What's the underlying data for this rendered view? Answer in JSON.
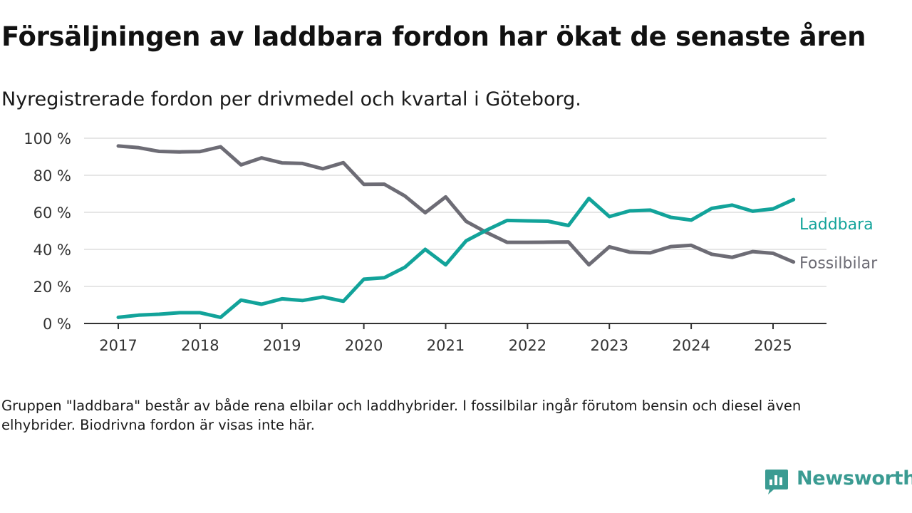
{
  "header": {
    "title": "Försäljningen av laddbara fordon har ökat de senaste åren",
    "subtitle": "Nyregistrerade fordon per drivmedel och kvartal i Göteborg."
  },
  "footer": {
    "note": "Gruppen \"laddbara\" består av både rena elbilar och laddhybrider. I fossilbilar ingår förutom bensin och diesel även elhybrider. Biodrivna fordon är visas inte här.",
    "brand": "Newsworthy"
  },
  "colors": {
    "laddbara": "#12a39a",
    "fossilbilar": "#6d6c75",
    "grid": "#dddddd",
    "axis": "#333333",
    "brand": "#3a9b92"
  },
  "icons": {
    "brand_logo": "chart-speech-bubble-icon"
  },
  "chart_data": {
    "type": "line",
    "title": "",
    "xlabel": "",
    "ylabel": "",
    "ylim": [
      0,
      100
    ],
    "yticks": [
      0,
      20,
      40,
      60,
      80,
      100
    ],
    "ytick_labels": [
      "0 %",
      "20 %",
      "40 %",
      "60 %",
      "80 %",
      "100 %"
    ],
    "xlim": [
      2017,
      2025.5
    ],
    "xticks": [
      2017,
      2018,
      2019,
      2020,
      2021,
      2022,
      2023,
      2024,
      2025
    ],
    "xtick_labels": [
      "2017",
      "2018",
      "2019",
      "2020",
      "2021",
      "2022",
      "2023",
      "2024",
      "2025"
    ],
    "grid": true,
    "legend": "direct labels at right end of lines",
    "x": [
      2017,
      2017.25,
      2017.5,
      2017.75,
      2018,
      2018.25,
      2018.5,
      2018.75,
      2019,
      2019.25,
      2019.5,
      2019.75,
      2020,
      2020.25,
      2020.5,
      2020.75,
      2021,
      2021.25,
      2021.5,
      2021.75,
      2022,
      2022.25,
      2022.5,
      2022.75,
      2023,
      2023.25,
      2023.5,
      2023.75,
      2024,
      2024.25,
      2024.5,
      2024.75,
      2025,
      2025.25
    ],
    "series": [
      {
        "name": "Laddbara",
        "color": "#12a39a",
        "values": [
          3.3,
          4.5,
          5.0,
          5.8,
          5.8,
          3.3,
          12.6,
          10.4,
          13.3,
          12.4,
          14.3,
          12.0,
          23.9,
          24.7,
          30.3,
          40.0,
          31.7,
          44.6,
          50.4,
          55.6,
          55.4,
          55.2,
          52.9,
          67.5,
          57.7,
          60.8,
          61.2,
          57.3,
          55.8,
          62.1,
          63.9,
          60.6,
          61.9,
          66.9
        ]
      },
      {
        "name": "Fossilbilar",
        "color": "#6d6c75",
        "values": [
          95.8,
          94.9,
          92.9,
          92.6,
          92.8,
          95.4,
          85.6,
          89.4,
          86.7,
          86.4,
          83.5,
          86.8,
          75.1,
          75.2,
          68.9,
          59.8,
          68.3,
          55.1,
          49.1,
          43.8,
          43.8,
          43.9,
          44.0,
          31.7,
          41.4,
          38.5,
          38.1,
          41.5,
          42.2,
          37.4,
          35.7,
          38.8,
          37.9,
          33.2
        ]
      }
    ]
  }
}
